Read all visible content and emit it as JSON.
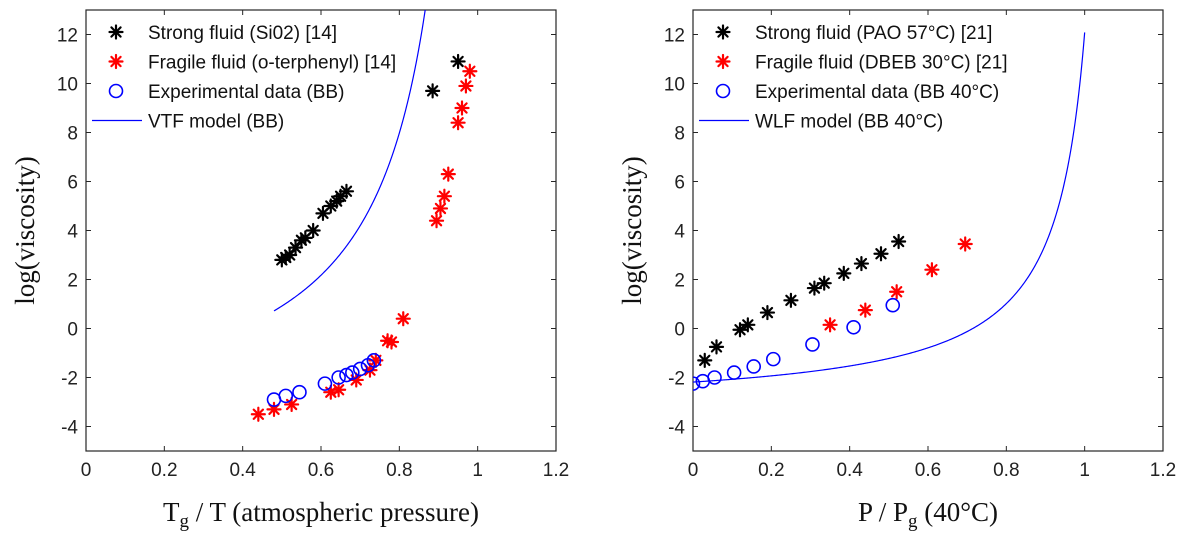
{
  "chart_data": [
    {
      "type": "scatter",
      "xlabel": "T",
      "xlabel_sub": "g",
      "xlabel_rest": " / T  (atmospheric pressure)",
      "ylabel": "log(viscosity)",
      "xlim": [
        0,
        1.2
      ],
      "ylim": [
        -5,
        13
      ],
      "xticks": [
        "0",
        "0.2",
        "0.4",
        "0.6",
        "0.8",
        "1",
        "1.2"
      ],
      "yticks": [
        "-4",
        "-2",
        "0",
        "2",
        "4",
        "6",
        "8",
        "10",
        "12"
      ],
      "grid": false,
      "legend_position": "top-left",
      "series": [
        {
          "name": "Strong fluid (Si02) [14]",
          "marker": "asterisk",
          "color": "#000000",
          "points": [
            [
              0.5,
              2.8
            ],
            [
              0.51,
              2.9
            ],
            [
              0.52,
              3.0
            ],
            [
              0.535,
              3.3
            ],
            [
              0.55,
              3.6
            ],
            [
              0.56,
              3.7
            ],
            [
              0.58,
              4.0
            ],
            [
              0.605,
              4.7
            ],
            [
              0.625,
              5.0
            ],
            [
              0.64,
              5.2
            ],
            [
              0.65,
              5.4
            ],
            [
              0.665,
              5.6
            ],
            [
              0.885,
              9.7
            ],
            [
              0.95,
              10.9
            ]
          ]
        },
        {
          "name": "Fragile fluid (o-terphenyl) [14]",
          "marker": "asterisk",
          "color": "#ff0000",
          "points": [
            [
              0.44,
              -3.5
            ],
            [
              0.48,
              -3.3
            ],
            [
              0.525,
              -3.1
            ],
            [
              0.625,
              -2.6
            ],
            [
              0.645,
              -2.5
            ],
            [
              0.69,
              -2.1
            ],
            [
              0.725,
              -1.7
            ],
            [
              0.74,
              -1.3
            ],
            [
              0.77,
              -0.5
            ],
            [
              0.78,
              -0.55
            ],
            [
              0.81,
              0.4
            ],
            [
              0.895,
              4.4
            ],
            [
              0.905,
              4.9
            ],
            [
              0.915,
              5.4
            ],
            [
              0.925,
              6.3
            ],
            [
              0.95,
              8.4
            ],
            [
              0.96,
              9.0
            ],
            [
              0.97,
              9.9
            ],
            [
              0.98,
              10.5
            ]
          ]
        },
        {
          "name": "Experimental data (BB)",
          "marker": "circle",
          "color": "#0000ff",
          "points": [
            [
              0.48,
              -2.9
            ],
            [
              0.51,
              -2.75
            ],
            [
              0.545,
              -2.6
            ],
            [
              0.61,
              -2.25
            ],
            [
              0.645,
              -2.0
            ],
            [
              0.665,
              -1.9
            ],
            [
              0.68,
              -1.8
            ],
            [
              0.7,
              -1.65
            ],
            [
              0.72,
              -1.5
            ],
            [
              0.735,
              -1.3
            ]
          ]
        },
        {
          "name": "VTF model (BB)",
          "marker": "line",
          "color": "#0000ff",
          "model": "vtf",
          "params": {
            "a": -4.5,
            "b": 2.87,
            "x0": 1.03
          },
          "x_range": [
            0.48,
            1.0
          ]
        }
      ]
    },
    {
      "type": "scatter",
      "xlabel": "P / P",
      "xlabel_sub": "g",
      "xlabel_rest": " (40°C)",
      "ylabel": "log(viscosity)",
      "xlim": [
        0,
        1.2
      ],
      "ylim": [
        -5,
        13
      ],
      "xticks": [
        "0",
        "0.2",
        "0.4",
        "0.6",
        "0.8",
        "1",
        "1.2"
      ],
      "yticks": [
        "-4",
        "-2",
        "0",
        "2",
        "4",
        "6",
        "8",
        "10",
        "12"
      ],
      "grid": false,
      "legend_position": "top-left",
      "series": [
        {
          "name": "Strong fluid (PAO 57°C) [21]",
          "marker": "asterisk",
          "color": "#000000",
          "points": [
            [
              0.03,
              -1.3
            ],
            [
              0.06,
              -0.75
            ],
            [
              0.12,
              -0.05
            ],
            [
              0.14,
              0.15
            ],
            [
              0.19,
              0.65
            ],
            [
              0.25,
              1.15
            ],
            [
              0.31,
              1.65
            ],
            [
              0.335,
              1.85
            ],
            [
              0.385,
              2.25
            ],
            [
              0.43,
              2.65
            ],
            [
              0.48,
              3.05
            ],
            [
              0.525,
              3.55
            ]
          ]
        },
        {
          "name": "Fragile fluid (DBEB 30°C) [21]",
          "marker": "asterisk",
          "color": "#ff0000",
          "points": [
            [
              0.35,
              0.15
            ],
            [
              0.44,
              0.75
            ],
            [
              0.52,
              1.5
            ],
            [
              0.61,
              2.4
            ],
            [
              0.695,
              3.45
            ]
          ]
        },
        {
          "name": "Experimental data (BB 40°C)",
          "marker": "circle",
          "color": "#0000ff",
          "points": [
            [
              0.0,
              -2.25
            ],
            [
              0.025,
              -2.15
            ],
            [
              0.055,
              -2.0
            ],
            [
              0.105,
              -1.8
            ],
            [
              0.155,
              -1.55
            ],
            [
              0.205,
              -1.25
            ],
            [
              0.305,
              -0.65
            ],
            [
              0.41,
              0.05
            ],
            [
              0.51,
              0.95
            ]
          ]
        },
        {
          "name": "WLF model (BB 40°C)",
          "marker": "line",
          "color": "#0000ff",
          "model": "wlf",
          "params": {
            "a": -3.3,
            "b": 1.2,
            "x0": 1.078
          },
          "x_range": [
            0.0,
            1.0
          ]
        }
      ]
    }
  ]
}
